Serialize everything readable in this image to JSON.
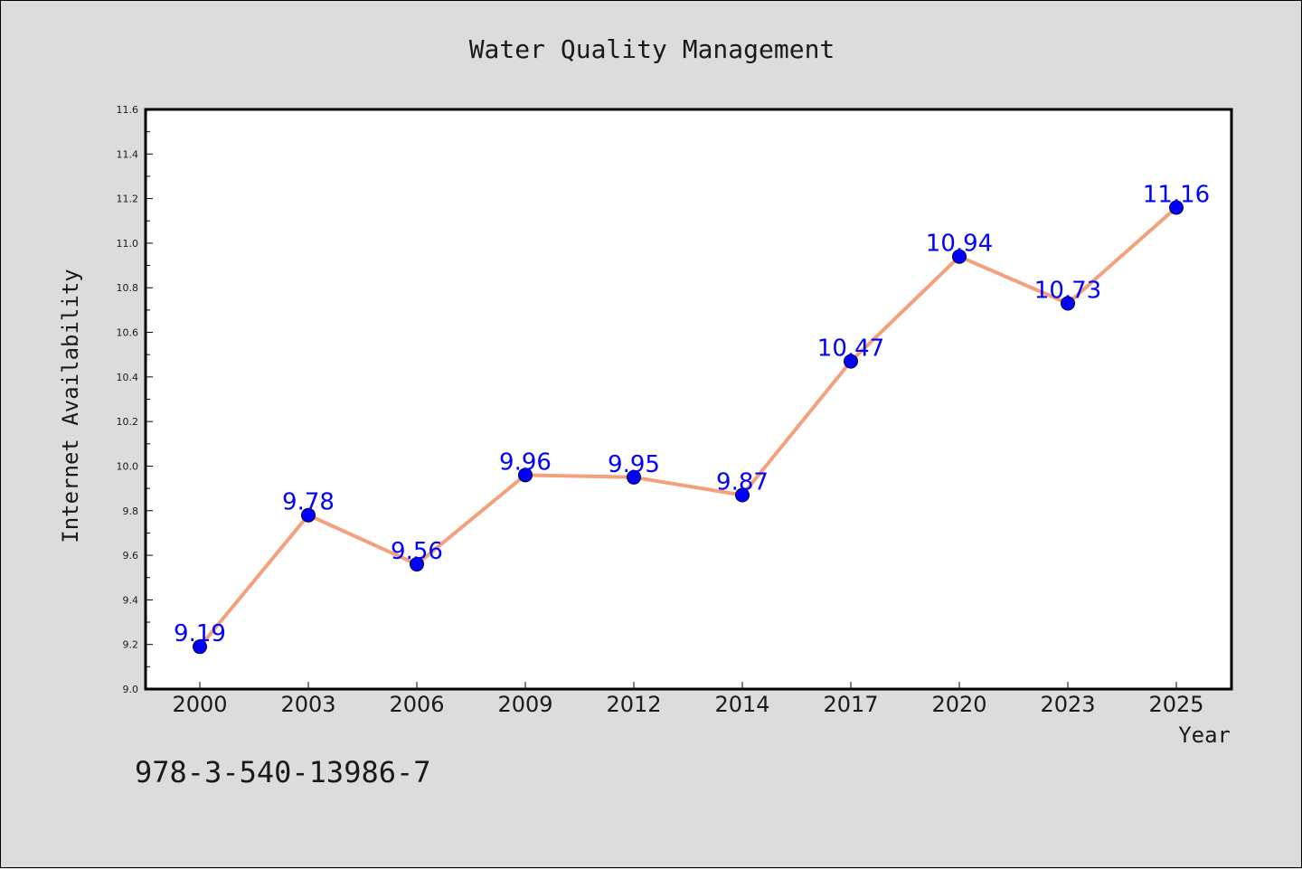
{
  "chart_data": {
    "type": "line",
    "title": "Water Quality Management",
    "xlabel": "Year",
    "ylabel": "Internet Availability",
    "categories": [
      "2000",
      "2003",
      "2006",
      "2009",
      "2012",
      "2014",
      "2017",
      "2020",
      "2023",
      "2025"
    ],
    "series": [
      {
        "values": [
          9.19,
          9.78,
          9.56,
          9.96,
          9.95,
          9.87,
          10.47,
          10.94,
          10.73,
          11.16
        ]
      }
    ],
    "data_labels": [
      "9.19",
      "9.78",
      "9.56",
      "9.96",
      "9.95",
      "9.87",
      "10.47",
      "10.94",
      "10.73",
      "11.16"
    ],
    "ylim": [
      9.0,
      11.6
    ],
    "y_ticks": [
      "9.0",
      "9.2",
      "9.4",
      "9.6",
      "9.8",
      "10.0",
      "10.2",
      "10.4",
      "10.6",
      "10.8",
      "11.0",
      "11.2",
      "11.4",
      "11.6"
    ],
    "grid": false,
    "colors": {
      "line": "#f4a07c",
      "marker": "#0000ff",
      "data_label": "#0000ff",
      "plot_background": "#ffffff",
      "figure_background": "#dcdcdc"
    }
  },
  "footer": {
    "isbn": "978-3-540-13986-7"
  }
}
